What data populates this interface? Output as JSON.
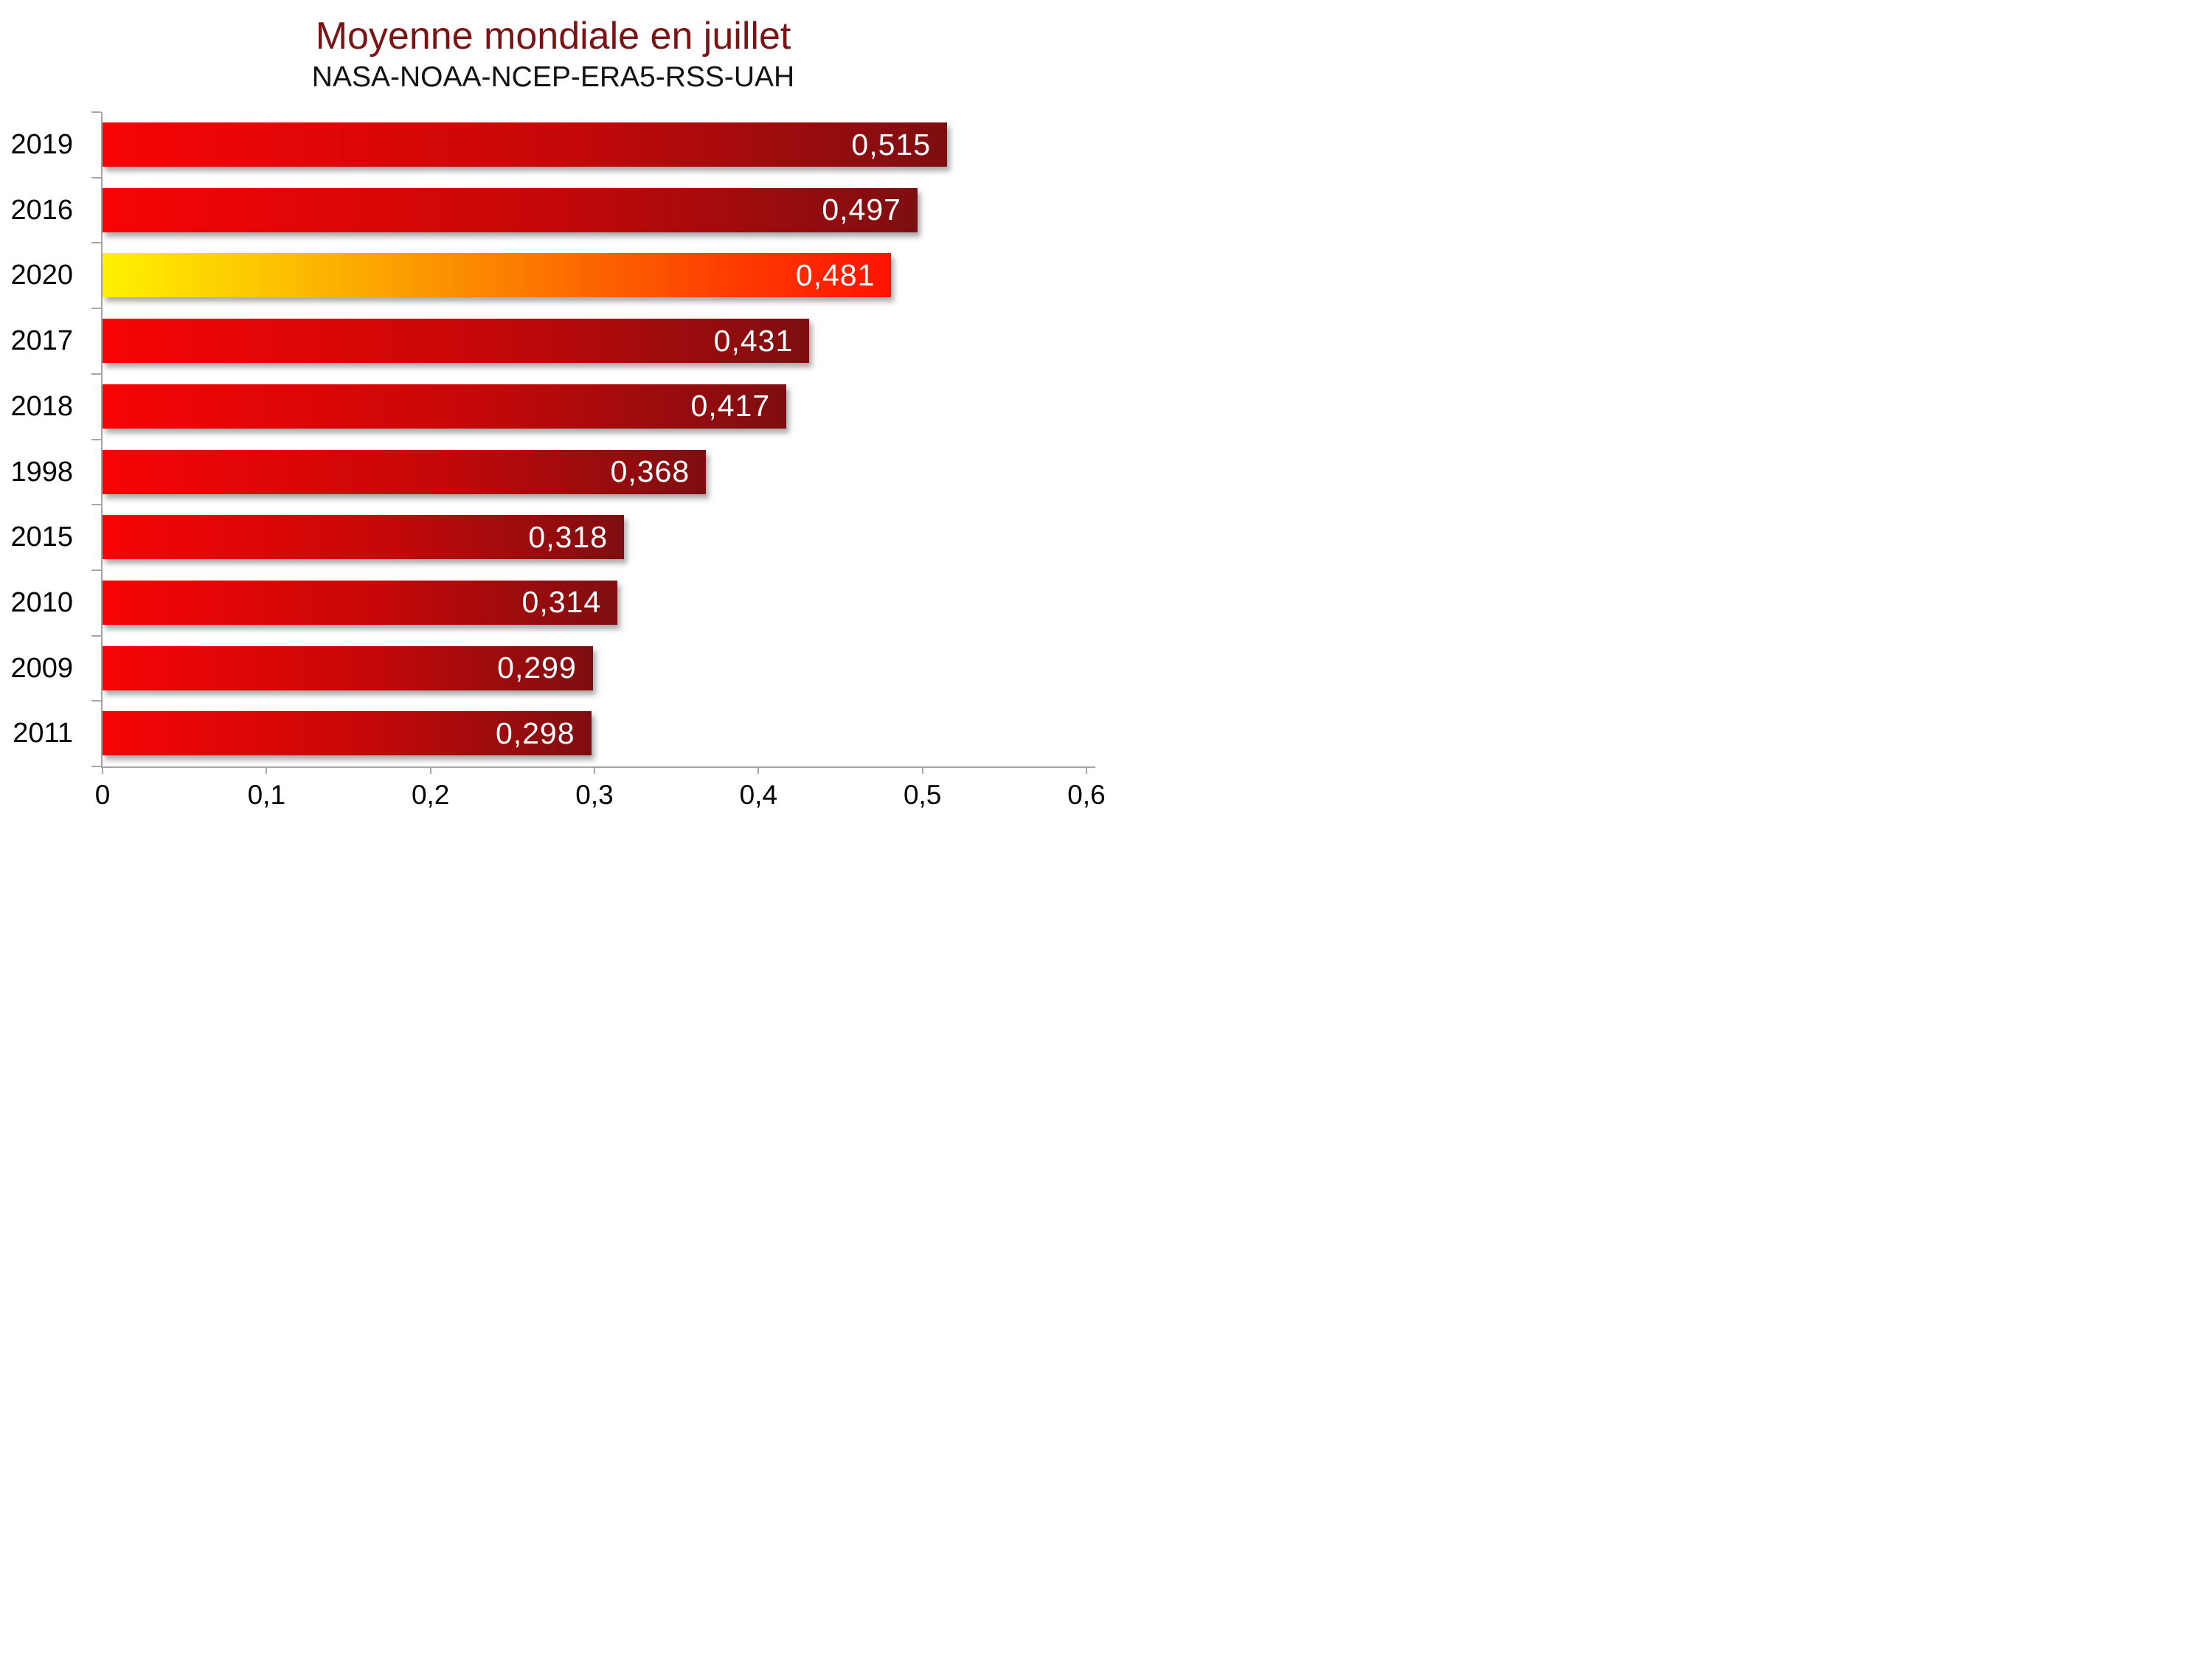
{
  "chart_data": {
    "type": "bar",
    "orientation": "horizontal",
    "title": "Moyenne mondiale en juillet",
    "subtitle": "NASA-NOAA-NCEP-ERA5-RSS-UAH",
    "categories": [
      "2019",
      "2016",
      "2020",
      "2017",
      "2018",
      "1998",
      "2015",
      "2010",
      "2009",
      "2011"
    ],
    "values": [
      0.515,
      0.497,
      0.481,
      0.431,
      0.417,
      0.368,
      0.318,
      0.314,
      0.299,
      0.298
    ],
    "value_labels": [
      "0,515",
      "0,497",
      "0,481",
      "0,431",
      "0,417",
      "0,368",
      "0,318",
      "0,314",
      "0,299",
      "0,298"
    ],
    "highlight_category": "2020",
    "xlim": [
      0,
      0.6
    ],
    "x_tick_labels": [
      "0",
      "0,1",
      "0,2",
      "0,3",
      "0,4",
      "0,5",
      "0,6"
    ],
    "x_tick_values": [
      0,
      0.1,
      0.2,
      0.3,
      0.4,
      0.5,
      0.6
    ],
    "grid": false,
    "legend": false,
    "colors": {
      "title_color": "#7d1215",
      "subtitle_color": "#121212",
      "axis_color": "#a6a6a6",
      "value_label_color": "#ffffff",
      "bar_gradient": [
        "#f70404",
        "#c50808",
        "#7e0e11"
      ],
      "highlight_gradient": [
        "#fef200",
        "#fb9500",
        "#fd4000",
        "#fe1200"
      ]
    }
  }
}
